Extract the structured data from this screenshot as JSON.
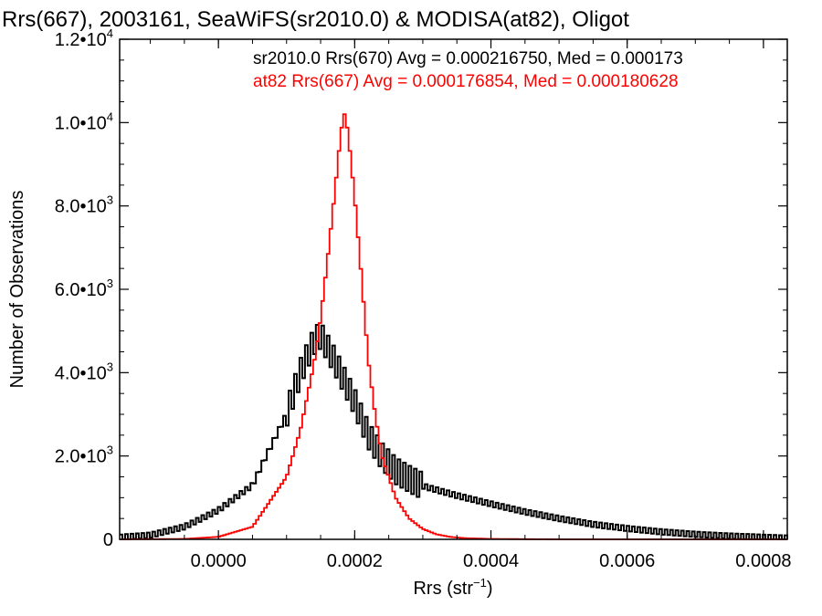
{
  "chart_data": {
    "type": "line",
    "title": "Rrs(667), 2003161, SeaWiFS(sr2010.0) & MODISA(at82), Oligot",
    "xlabel_base": "Rrs (str",
    "xlabel_sup": "−1",
    "xlabel_close": ")",
    "ylabel": "Number of Observations",
    "xlim": [
      -0.000145,
      0.000835
    ],
    "ylim": [
      0,
      12000
    ],
    "x_ticks": [
      {
        "value": 0.0,
        "label": "0.0000"
      },
      {
        "value": 0.0002,
        "label": "0.0002"
      },
      {
        "value": 0.0004,
        "label": "0.0004"
      },
      {
        "value": 0.0006,
        "label": "0.0006"
      },
      {
        "value": 0.0008,
        "label": "0.0008"
      }
    ],
    "y_ticks": [
      {
        "value": 0,
        "base": "0",
        "exp": ""
      },
      {
        "value": 2000,
        "base": "2.0•10",
        "exp": "3"
      },
      {
        "value": 4000,
        "base": "4.0•10",
        "exp": "3"
      },
      {
        "value": 6000,
        "base": "6.0•10",
        "exp": "3"
      },
      {
        "value": 8000,
        "base": "8.0•10",
        "exp": "3"
      },
      {
        "value": 10000,
        "base": "1.0•10",
        "exp": "4"
      },
      {
        "value": 12000,
        "base": "1.2•10",
        "exp": "4"
      }
    ],
    "annotations": [
      {
        "text": "sr2010.0 Rrs(670) Avg = 0.000216750, Med = 0.000173",
        "color": "#000000"
      },
      {
        "text": "at82 Rrs(667) Avg = 0.000176854, Med = 0.000180628",
        "color": "#ff0000"
      }
    ],
    "series": [
      {
        "color": "#000000",
        "x": [
          -0.000145,
          -0.0001,
          -5e-05,
          0.0,
          5e-05,
          7e-05,
          0.0001,
          0.00012,
          0.00014,
          0.00015,
          0.00017,
          0.0002,
          0.00022,
          0.00024,
          0.00026,
          0.00028,
          0.0003,
          0.00035,
          0.0004,
          0.00045,
          0.0005,
          0.00055,
          0.0006,
          0.00065,
          0.0007,
          0.00075,
          0.0008,
          0.000835
        ],
        "y": [
          50,
          100,
          300,
          700,
          1300,
          2000,
          3000,
          4000,
          4750,
          4900,
          4300,
          3300,
          2500,
          2000,
          1650,
          1450,
          1280,
          1050,
          850,
          660,
          500,
          360,
          260,
          180,
          120,
          80,
          50,
          30
        ],
        "noise": 320,
        "noise_range": [
          0.0001,
          0.0003
        ]
      },
      {
        "color": "#ff0000",
        "x": [
          -0.000145,
          -5e-05,
          0.0,
          5e-05,
          0.0001,
          0.00012,
          0.00014,
          0.00015,
          0.00016,
          0.00017,
          0.00018,
          0.000185,
          0.00019,
          0.0002,
          0.00021,
          0.00022,
          0.00023,
          0.00024,
          0.00026,
          0.00028,
          0.0003,
          0.00032,
          0.00034,
          0.00036,
          0.0004,
          0.00045,
          0.0005,
          0.000835
        ],
        "y": [
          0,
          10,
          60,
          300,
          1500,
          2600,
          4200,
          5300,
          6700,
          8200,
          9800,
          10200,
          9800,
          8200,
          6300,
          4300,
          3000,
          2000,
          1000,
          500,
          250,
          120,
          60,
          30,
          10,
          5,
          0,
          0
        ],
        "noise": 0,
        "noise_range": [
          0,
          0
        ]
      }
    ]
  }
}
